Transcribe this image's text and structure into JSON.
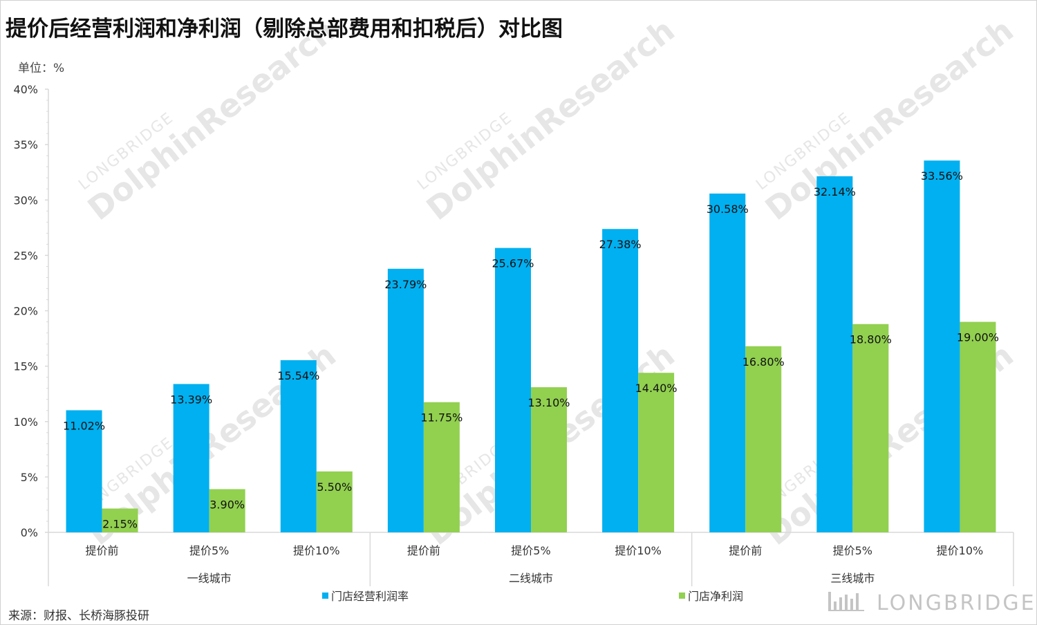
{
  "title": "提价后经营利润和净利润（剔除总部费用和扣税后）对比图",
  "unit_label": "单位：%",
  "source": "来源：财报、长桥海豚投研",
  "watermark": {
    "small": "LONGBRIDGE",
    "big": "DolphinResearch"
  },
  "brand": "LONGBRIDGE",
  "colors": {
    "store_operating_margin": "#00b0f0",
    "store_net_profit": "#92d050",
    "axis": "#d9d9d9",
    "text": "#333333"
  },
  "chart_data": {
    "type": "bar",
    "y_axis": {
      "min": 0,
      "max": 40,
      "step": 5,
      "tick_suffix": "%"
    },
    "groups": [
      {
        "name": "一线城市",
        "categories": [
          "提价前",
          "提价5%",
          "提价10%"
        ]
      },
      {
        "name": "二线城市",
        "categories": [
          "提价前",
          "提价5%",
          "提价10%"
        ]
      },
      {
        "name": "三线城市",
        "categories": [
          "提价前",
          "提价5%",
          "提价10%"
        ]
      }
    ],
    "series": [
      {
        "name": "门店经营利润率",
        "values": [
          11.02,
          13.39,
          15.54,
          23.79,
          25.67,
          27.38,
          30.58,
          32.14,
          33.56
        ],
        "labels": [
          "11.02%",
          "13.39%",
          "15.54%",
          "23.79%",
          "25.67%",
          "27.38%",
          "30.58%",
          "32.14%",
          "33.56%"
        ]
      },
      {
        "name": "门店净利润",
        "values": [
          2.15,
          3.9,
          5.5,
          11.75,
          13.1,
          14.4,
          16.8,
          18.8,
          19.0
        ],
        "labels": [
          "2.15%",
          "3.90%",
          "5.50%",
          "11.75%",
          "13.10%",
          "14.40%",
          "16.80%",
          "18.80%",
          "19.00%"
        ]
      }
    ],
    "legend_position": "bottom",
    "grid": false
  }
}
